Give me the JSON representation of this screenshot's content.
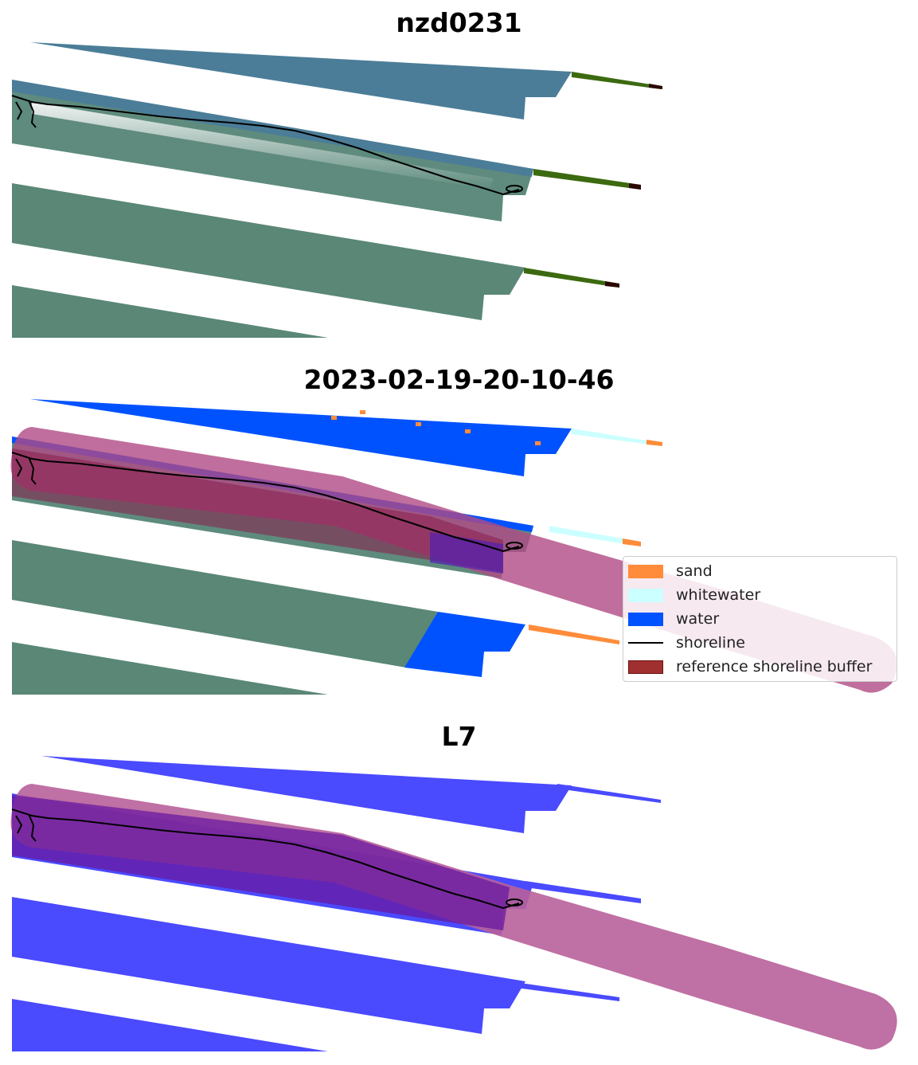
{
  "panels": [
    {
      "title": "nzd0231"
    },
    {
      "title": "2023-02-19-20-10-46"
    },
    {
      "title": "L7"
    }
  ],
  "legend": {
    "items": [
      {
        "label": "sand",
        "color": "#ff8c3a",
        "kind": "patch"
      },
      {
        "label": "whitewater",
        "color": "#ccffff",
        "kind": "patch"
      },
      {
        "label": "water",
        "color": "#0052ff",
        "kind": "patch"
      },
      {
        "label": "shoreline",
        "color": "#000000",
        "kind": "line"
      },
      {
        "label": "reference shoreline buffer",
        "color": "#a0302f",
        "kind": "patch"
      }
    ]
  },
  "colors": {
    "buffer_overlay": "#b04a85",
    "water_overlay": "#4040ff",
    "imagery_land": "#5f8a7c",
    "imagery_sea": "#4a7d9a",
    "vegetation_strip": "#3c6a10"
  }
}
